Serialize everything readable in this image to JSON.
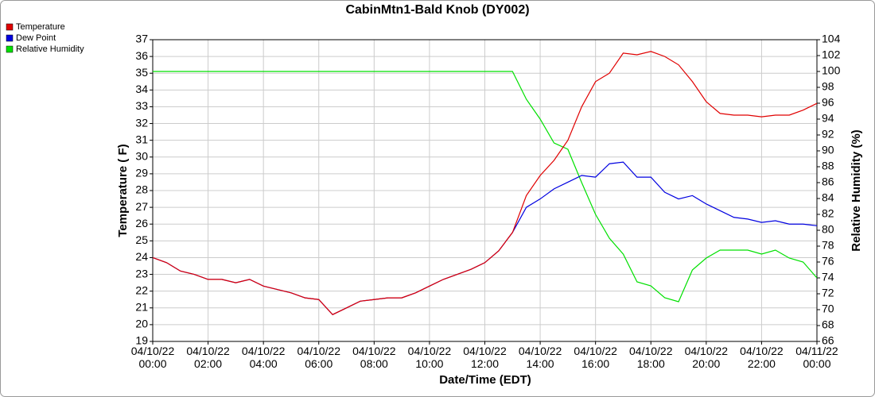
{
  "chart_data": {
    "type": "line",
    "title": "CabinMtn1-Bald Knob (DY002)",
    "x_label": "Date/Time (EDT)",
    "y_label": "Temperature ( F)",
    "y2_label": "Relative Humidity (%)",
    "x": [
      0,
      0.5,
      1,
      1.5,
      2,
      2.5,
      3,
      3.5,
      4,
      4.5,
      5,
      5.5,
      6,
      6.5,
      7,
      7.5,
      8,
      8.5,
      9,
      9.5,
      10,
      10.5,
      11,
      11.5,
      12,
      12.5,
      13,
      13.5,
      14,
      14.5,
      15,
      15.5,
      16,
      16.5,
      17,
      17.5,
      18,
      18.5,
      19,
      19.5,
      20,
      20.5,
      21,
      21.5,
      22,
      22.5,
      23,
      23.5,
      24
    ],
    "series": [
      {
        "name": "Relative Humidity",
        "color": "#00e000",
        "axis": "y2",
        "values": [
          100,
          100,
          100,
          100,
          100,
          100,
          100,
          100,
          100,
          100,
          100,
          100,
          100,
          100,
          100,
          100,
          100,
          100,
          100,
          100,
          100,
          100,
          100,
          100,
          100,
          100,
          100,
          96.5,
          94,
          91,
          90.2,
          86,
          82,
          79,
          77,
          73.5,
          73,
          71.5,
          71,
          75,
          76.5,
          77.5,
          77.5,
          77.5,
          77,
          77.5,
          76.5,
          76,
          74
        ]
      },
      {
        "name": "Dew Point",
        "color": "#0000e0",
        "values": [
          24.0,
          23.7,
          23.2,
          23.0,
          22.7,
          22.7,
          22.5,
          22.7,
          22.3,
          22.1,
          21.9,
          21.6,
          21.5,
          20.6,
          21.0,
          21.4,
          21.5,
          21.6,
          21.6,
          21.9,
          22.3,
          22.7,
          23.0,
          23.3,
          23.7,
          24.4,
          25.5,
          27.0,
          27.5,
          28.1,
          28.5,
          28.9,
          28.8,
          29.6,
          29.7,
          28.8,
          28.8,
          27.9,
          27.5,
          27.7,
          27.2,
          26.8,
          26.4,
          26.3,
          26.1,
          26.2,
          26.0,
          26.0,
          25.9
        ]
      },
      {
        "name": "Temperature",
        "color": "#e00000",
        "values": [
          24.0,
          23.7,
          23.2,
          23.0,
          22.7,
          22.7,
          22.5,
          22.7,
          22.3,
          22.1,
          21.9,
          21.6,
          21.5,
          20.6,
          21.0,
          21.4,
          21.5,
          21.6,
          21.6,
          21.9,
          22.3,
          22.7,
          23.0,
          23.3,
          23.7,
          24.4,
          25.5,
          27.7,
          28.9,
          29.8,
          31.0,
          33.0,
          34.5,
          35.0,
          36.2,
          36.1,
          36.3,
          36.0,
          35.5,
          34.5,
          33.3,
          32.6,
          32.5,
          32.5,
          32.4,
          32.5,
          32.5,
          32.8,
          33.2
        ]
      }
    ],
    "legend_order": [
      "Temperature",
      "Dew Point",
      "Relative Humidity"
    ],
    "legend": "top-left",
    "grid": true,
    "xlim": [
      0,
      24
    ],
    "xticks": [
      {
        "value": 0,
        "label": "04/10/22\n00:00"
      },
      {
        "value": 2,
        "label": "04/10/22\n02:00"
      },
      {
        "value": 4,
        "label": "04/10/22\n04:00"
      },
      {
        "value": 6,
        "label": "04/10/22\n06:00"
      },
      {
        "value": 8,
        "label": "04/10/22\n08:00"
      },
      {
        "value": 10,
        "label": "04/10/22\n10:00"
      },
      {
        "value": 12,
        "label": "04/10/22\n12:00"
      },
      {
        "value": 14,
        "label": "04/10/22\n14:00"
      },
      {
        "value": 16,
        "label": "04/10/22\n16:00"
      },
      {
        "value": 18,
        "label": "04/10/22\n18:00"
      },
      {
        "value": 20,
        "label": "04/10/22\n20:00"
      },
      {
        "value": 22,
        "label": "04/10/22\n22:00"
      },
      {
        "value": 24,
        "label": "04/11/22\n00:00"
      }
    ],
    "ylim": [
      19,
      37
    ],
    "yticks": [
      19,
      20,
      21,
      22,
      23,
      24,
      25,
      26,
      27,
      28,
      29,
      30,
      31,
      32,
      33,
      34,
      35,
      36,
      37
    ],
    "y2lim": [
      66,
      104
    ],
    "y2ticks": [
      66,
      68,
      70,
      72,
      74,
      76,
      78,
      80,
      82,
      84,
      86,
      88,
      90,
      92,
      94,
      96,
      98,
      100,
      102,
      104
    ]
  }
}
